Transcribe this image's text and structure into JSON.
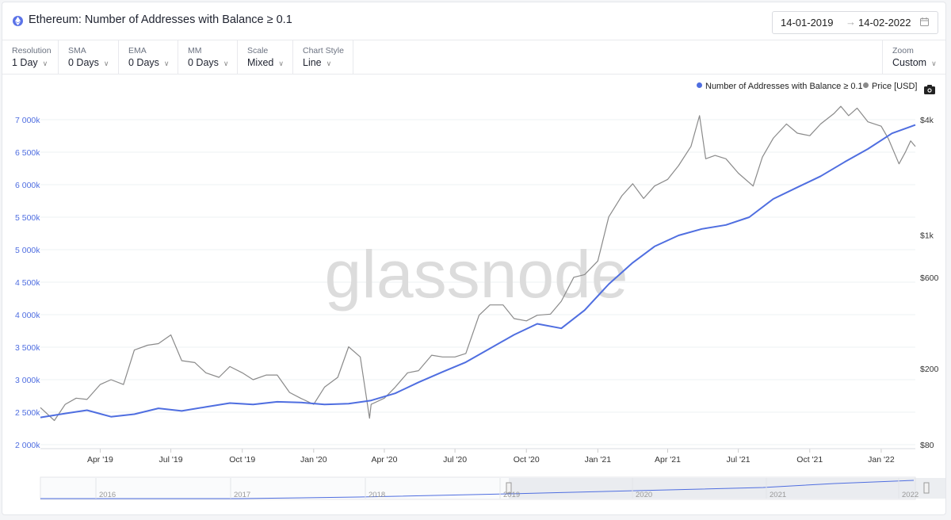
{
  "header": {
    "title": "Ethereum: Number of Addresses with Balance ≥ 0.1",
    "date_from": "14-01-2019",
    "date_to": "14-02-2022",
    "arrow": "→"
  },
  "controls": [
    {
      "label": "Resolution",
      "value": "1 Day"
    },
    {
      "label": "SMA",
      "value": "0 Days"
    },
    {
      "label": "EMA",
      "value": "0 Days"
    },
    {
      "label": "MM",
      "value": "0 Days"
    },
    {
      "label": "Scale",
      "value": "Mixed"
    },
    {
      "label": "Chart Style",
      "value": "Line"
    }
  ],
  "zoom": {
    "label": "Zoom",
    "value": "Custom"
  },
  "watermark": "glassnode",
  "colors": {
    "addresses": "#4f6ee0",
    "price": "#8a8a8a",
    "axis_left": "#4f6ee0"
  },
  "chart_data": {
    "type": "line",
    "x_ticks": [
      "Apr '19",
      "Jul '19",
      "Oct '19",
      "Jan '20",
      "Apr '20",
      "Jul '20",
      "Oct '20",
      "Jan '21",
      "Apr '21",
      "Jul '21",
      "Oct '21",
      "Jan '22"
    ],
    "y_left_ticks": [
      "7 000k",
      "6 500k",
      "6 000k",
      "5 500k",
      "5 000k",
      "4 500k",
      "4 000k",
      "3 500k",
      "3 000k",
      "2 500k",
      "2 000k"
    ],
    "y_left_range": [
      2000000,
      7000000
    ],
    "y_right_ticks": [
      "$4k",
      "$1k",
      "$600",
      "$200",
      "$80"
    ],
    "y_right_scale": "log",
    "legend_position": "top-right",
    "series": [
      {
        "name": "Number of Addresses with Balance ≥ 0.1",
        "axis": "left",
        "x": [
          "2019-01-14",
          "2019-02-15",
          "2019-03-15",
          "2019-04-15",
          "2019-05-15",
          "2019-06-15",
          "2019-07-15",
          "2019-08-15",
          "2019-09-15",
          "2019-10-15",
          "2019-11-15",
          "2019-12-15",
          "2020-01-15",
          "2020-02-15",
          "2020-03-15",
          "2020-04-15",
          "2020-05-15",
          "2020-06-15",
          "2020-07-15",
          "2020-08-15",
          "2020-09-15",
          "2020-10-15",
          "2020-11-15",
          "2020-12-15",
          "2021-01-15",
          "2021-02-15",
          "2021-03-15",
          "2021-04-15",
          "2021-05-15",
          "2021-06-15",
          "2021-07-15",
          "2021-08-15",
          "2021-09-15",
          "2021-10-15",
          "2021-11-15",
          "2021-12-15",
          "2022-01-15",
          "2022-02-14"
        ],
        "y": [
          2420000,
          2480000,
          2530000,
          2430000,
          2470000,
          2560000,
          2520000,
          2580000,
          2640000,
          2620000,
          2660000,
          2650000,
          2620000,
          2630000,
          2680000,
          2790000,
          2960000,
          3120000,
          3270000,
          3480000,
          3690000,
          3860000,
          3790000,
          4070000,
          4470000,
          4800000,
          5050000,
          5220000,
          5320000,
          5380000,
          5500000,
          5780000,
          5960000,
          6130000,
          6350000,
          6550000,
          6790000,
          6920000
        ]
      },
      {
        "name": "Price [USD]",
        "axis": "right",
        "x": [
          "2019-01-14",
          "2019-02-01",
          "2019-02-15",
          "2019-03-01",
          "2019-03-15",
          "2019-04-01",
          "2019-04-15",
          "2019-05-01",
          "2019-05-15",
          "2019-06-01",
          "2019-06-15",
          "2019-07-01",
          "2019-07-15",
          "2019-08-01",
          "2019-08-15",
          "2019-09-01",
          "2019-09-15",
          "2019-10-01",
          "2019-10-15",
          "2019-11-01",
          "2019-11-15",
          "2019-12-01",
          "2019-12-15",
          "2020-01-01",
          "2020-01-15",
          "2020-02-01",
          "2020-02-15",
          "2020-03-01",
          "2020-03-13",
          "2020-03-15",
          "2020-04-01",
          "2020-04-15",
          "2020-05-01",
          "2020-05-15",
          "2020-06-01",
          "2020-06-15",
          "2020-07-01",
          "2020-07-15",
          "2020-08-01",
          "2020-08-15",
          "2020-09-01",
          "2020-09-15",
          "2020-10-01",
          "2020-10-15",
          "2020-11-01",
          "2020-11-15",
          "2020-12-01",
          "2020-12-15",
          "2021-01-01",
          "2021-01-15",
          "2021-02-01",
          "2021-02-15",
          "2021-03-01",
          "2021-03-15",
          "2021-04-01",
          "2021-04-15",
          "2021-05-01",
          "2021-05-12",
          "2021-05-20",
          "2021-06-01",
          "2021-06-15",
          "2021-07-01",
          "2021-07-20",
          "2021-08-01",
          "2021-08-15",
          "2021-09-01",
          "2021-09-15",
          "2021-10-01",
          "2021-10-15",
          "2021-11-01",
          "2021-11-10",
          "2021-11-20",
          "2021-12-01",
          "2021-12-15",
          "2022-01-01",
          "2022-01-10",
          "2022-01-24",
          "2022-02-01",
          "2022-02-08",
          "2022-02-14"
        ],
        "y": [
          125,
          107,
          130,
          140,
          138,
          165,
          175,
          165,
          250,
          265,
          270,
          300,
          220,
          215,
          190,
          180,
          205,
          190,
          175,
          185,
          185,
          150,
          140,
          130,
          160,
          180,
          260,
          230,
          110,
          130,
          140,
          160,
          190,
          195,
          235,
          230,
          230,
          240,
          380,
          430,
          430,
          365,
          355,
          380,
          385,
          450,
          600,
          620,
          730,
          1240,
          1600,
          1850,
          1550,
          1800,
          1950,
          2300,
          2900,
          4200,
          2500,
          2600,
          2500,
          2100,
          1800,
          2550,
          3200,
          3800,
          3400,
          3300,
          3800,
          4300,
          4700,
          4200,
          4600,
          3900,
          3700,
          3200,
          2350,
          2700,
          3100,
          2900
        ]
      }
    ]
  }
}
